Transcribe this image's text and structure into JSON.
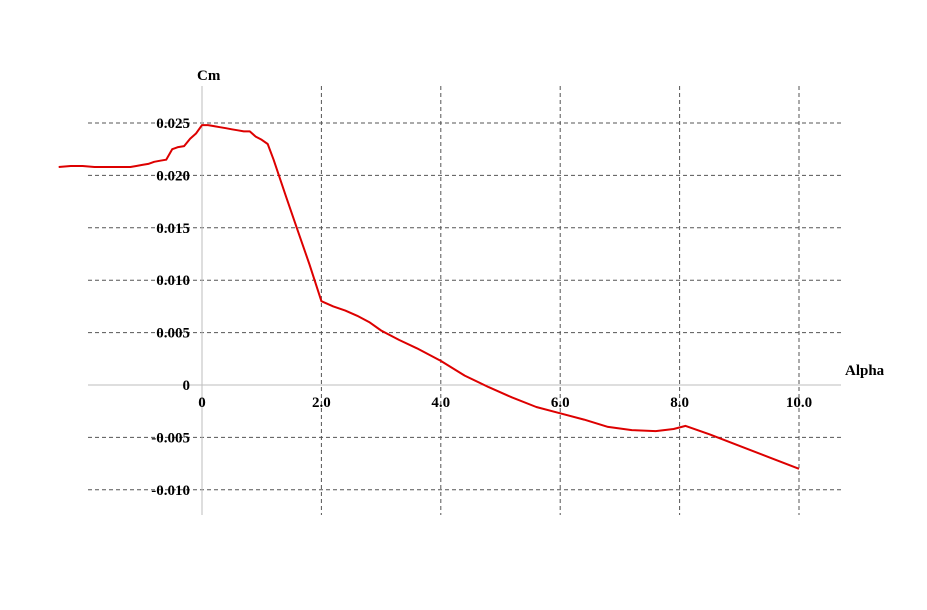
{
  "chart_data": {
    "type": "line",
    "title": "",
    "xlabel": "Alpha",
    "ylabel": "Cm",
    "xlim": [
      -2.4,
      10.7
    ],
    "ylim": [
      -0.0122,
      0.0281
    ],
    "grid": true,
    "x_ticks": [
      0,
      2,
      4,
      6,
      8,
      10
    ],
    "x_tick_labels": [
      "0",
      "2.0",
      "4.0",
      "6.0",
      "8.0",
      "10.0"
    ],
    "y_ticks": [
      0.025,
      0.02,
      0.015,
      0.01,
      0.005,
      0,
      -0.005,
      -0.01
    ],
    "y_tick_labels": [
      "0.025",
      "0.020",
      "0.015",
      "0.010",
      "0.005",
      "0",
      "-0.005",
      "-0.010"
    ],
    "series": [
      {
        "color": "#dd0000",
        "x": [
          -2.4,
          -2.2,
          -2.0,
          -1.8,
          -1.6,
          -1.4,
          -1.3,
          -1.2,
          -1.1,
          -1.0,
          -0.9,
          -0.8,
          -0.7,
          -0.6,
          -0.5,
          -0.45,
          -0.4,
          -0.3,
          -0.2,
          -0.1,
          0.0,
          0.1,
          0.2,
          0.3,
          0.4,
          0.5,
          0.6,
          0.7,
          0.8,
          0.9,
          1.0,
          1.1,
          1.2,
          1.4,
          1.6,
          1.8,
          2.0,
          2.2,
          2.4,
          2.6,
          2.8,
          3.0,
          3.3,
          3.6,
          4.0,
          4.4,
          4.8,
          5.2,
          5.6,
          6.0,
          6.4,
          6.8,
          7.2,
          7.6,
          7.9,
          8.1,
          8.5,
          9.0,
          9.5,
          10.0
        ],
        "y": [
          0.0208,
          0.0209,
          0.0209,
          0.0208,
          0.0208,
          0.0208,
          0.0208,
          0.0208,
          0.0209,
          0.021,
          0.0211,
          0.0213,
          0.0214,
          0.0215,
          0.0225,
          0.0226,
          0.0227,
          0.0228,
          0.0235,
          0.024,
          0.0248,
          0.0248,
          0.0247,
          0.0246,
          0.0245,
          0.0244,
          0.0243,
          0.0242,
          0.0242,
          0.0237,
          0.0234,
          0.023,
          0.0215,
          0.0181,
          0.0148,
          0.0115,
          0.008,
          0.0075,
          0.0071,
          0.0066,
          0.006,
          0.0052,
          0.0043,
          0.0035,
          0.0023,
          0.0009,
          -0.0002,
          -0.0012,
          -0.0021,
          -0.0027,
          -0.0033,
          -0.004,
          -0.0043,
          -0.0044,
          -0.0042,
          -0.0039,
          -0.0047,
          -0.0058,
          -0.0069,
          -0.008
        ]
      }
    ]
  }
}
